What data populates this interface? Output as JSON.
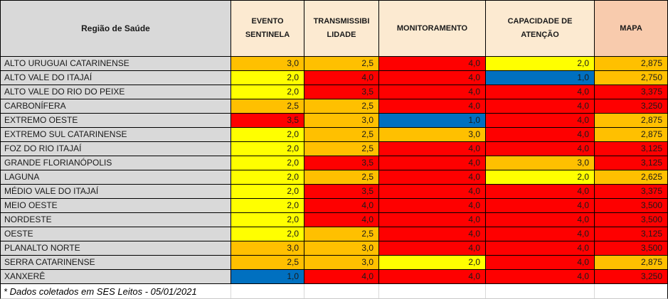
{
  "colors": {
    "yellow": "#FFFF00",
    "orange": "#FFC000",
    "red": "#FE0000",
    "blue": "#0070C0",
    "header_gray": "#D9D9D9",
    "header_cream": "#FCEAD1",
    "header_peach": "#F8CBAD",
    "grid_line": "#000000",
    "footer_gridline": "#D9D9D9"
  },
  "table": {
    "region_header": "Região de Saúde",
    "column_headers": [
      "EVENTO SENTINELA",
      "TRANSMISSIBILIDADE",
      "MONITORAMENTO",
      "CAPACIDADE DE ATENÇÃO",
      "MAPA"
    ],
    "rows": [
      {
        "region": "ALTO URUGUAI CATARINENSE",
        "cells": [
          {
            "v": "3,0",
            "c": "orange"
          },
          {
            "v": "2,5",
            "c": "orange"
          },
          {
            "v": "4,0",
            "c": "red"
          },
          {
            "v": "2,0",
            "c": "yellow"
          },
          {
            "v": "2,875",
            "c": "orange"
          }
        ]
      },
      {
        "region": "ALTO VALE DO ITAJAÍ",
        "cells": [
          {
            "v": "2,0",
            "c": "yellow"
          },
          {
            "v": "4,0",
            "c": "red"
          },
          {
            "v": "4,0",
            "c": "red"
          },
          {
            "v": "1,0",
            "c": "blue"
          },
          {
            "v": "2,750",
            "c": "orange"
          }
        ]
      },
      {
        "region": "ALTO VALE DO RIO DO PEIXE",
        "cells": [
          {
            "v": "2,0",
            "c": "yellow"
          },
          {
            "v": "3,5",
            "c": "red"
          },
          {
            "v": "4,0",
            "c": "red"
          },
          {
            "v": "4,0",
            "c": "red"
          },
          {
            "v": "3,375",
            "c": "red"
          }
        ]
      },
      {
        "region": "CARBONÍFERA",
        "cells": [
          {
            "v": "2,5",
            "c": "orange"
          },
          {
            "v": "2,5",
            "c": "orange"
          },
          {
            "v": "4,0",
            "c": "red"
          },
          {
            "v": "4,0",
            "c": "red"
          },
          {
            "v": "3,250",
            "c": "red"
          }
        ]
      },
      {
        "region": "EXTREMO OESTE",
        "cells": [
          {
            "v": "3,5",
            "c": "red"
          },
          {
            "v": "3,0",
            "c": "orange"
          },
          {
            "v": "1,0",
            "c": "blue"
          },
          {
            "v": "4,0",
            "c": "red"
          },
          {
            "v": "2,875",
            "c": "orange"
          }
        ]
      },
      {
        "region": "EXTREMO SUL CATARINENSE",
        "cells": [
          {
            "v": "2,0",
            "c": "yellow"
          },
          {
            "v": "2,5",
            "c": "orange"
          },
          {
            "v": "3,0",
            "c": "orange"
          },
          {
            "v": "4,0",
            "c": "red"
          },
          {
            "v": "2,875",
            "c": "orange"
          }
        ]
      },
      {
        "region": "FOZ DO RIO ITAJAÍ",
        "cells": [
          {
            "v": "2,0",
            "c": "yellow"
          },
          {
            "v": "2,5",
            "c": "orange"
          },
          {
            "v": "4,0",
            "c": "red"
          },
          {
            "v": "4,0",
            "c": "red"
          },
          {
            "v": "3,125",
            "c": "red"
          }
        ]
      },
      {
        "region": "GRANDE FLORIANÓPOLIS",
        "cells": [
          {
            "v": "2,0",
            "c": "yellow"
          },
          {
            "v": "3,5",
            "c": "red"
          },
          {
            "v": "4,0",
            "c": "red"
          },
          {
            "v": "3,0",
            "c": "orange"
          },
          {
            "v": "3,125",
            "c": "red"
          }
        ]
      },
      {
        "region": "LAGUNA",
        "cells": [
          {
            "v": "2,0",
            "c": "yellow"
          },
          {
            "v": "2,5",
            "c": "orange"
          },
          {
            "v": "4,0",
            "c": "red"
          },
          {
            "v": "2,0",
            "c": "yellow"
          },
          {
            "v": "2,625",
            "c": "orange"
          }
        ]
      },
      {
        "region": "MÉDIO VALE DO ITAJAÍ",
        "cells": [
          {
            "v": "2,0",
            "c": "yellow"
          },
          {
            "v": "3,5",
            "c": "red"
          },
          {
            "v": "4,0",
            "c": "red"
          },
          {
            "v": "4,0",
            "c": "red"
          },
          {
            "v": "3,375",
            "c": "red"
          }
        ]
      },
      {
        "region": "MEIO OESTE",
        "cells": [
          {
            "v": "2,0",
            "c": "yellow"
          },
          {
            "v": "4,0",
            "c": "red"
          },
          {
            "v": "4,0",
            "c": "red"
          },
          {
            "v": "4,0",
            "c": "red"
          },
          {
            "v": "3,500",
            "c": "red"
          }
        ]
      },
      {
        "region": "NORDESTE",
        "cells": [
          {
            "v": "2,0",
            "c": "yellow"
          },
          {
            "v": "4,0",
            "c": "red"
          },
          {
            "v": "4,0",
            "c": "red"
          },
          {
            "v": "4,0",
            "c": "red"
          },
          {
            "v": "3,500",
            "c": "red"
          }
        ]
      },
      {
        "region": "OESTE",
        "cells": [
          {
            "v": "2,0",
            "c": "yellow"
          },
          {
            "v": "2,5",
            "c": "orange"
          },
          {
            "v": "4,0",
            "c": "red"
          },
          {
            "v": "4,0",
            "c": "red"
          },
          {
            "v": "3,125",
            "c": "red"
          }
        ]
      },
      {
        "region": "PLANALTO NORTE",
        "cells": [
          {
            "v": "3,0",
            "c": "orange"
          },
          {
            "v": "3,0",
            "c": "orange"
          },
          {
            "v": "4,0",
            "c": "red"
          },
          {
            "v": "4,0",
            "c": "red"
          },
          {
            "v": "3,500",
            "c": "red"
          }
        ]
      },
      {
        "region": "SERRA CATARINENSE",
        "cells": [
          {
            "v": "2,5",
            "c": "orange"
          },
          {
            "v": "3,0",
            "c": "orange"
          },
          {
            "v": "2,0",
            "c": "yellow"
          },
          {
            "v": "4,0",
            "c": "red"
          },
          {
            "v": "2,875",
            "c": "orange"
          }
        ]
      },
      {
        "region": "XANXERÊ",
        "cells": [
          {
            "v": "1,0",
            "c": "blue"
          },
          {
            "v": "4,0",
            "c": "red"
          },
          {
            "v": "4,0",
            "c": "red"
          },
          {
            "v": "4,0",
            "c": "red"
          },
          {
            "v": "3,250",
            "c": "red"
          }
        ]
      }
    ]
  },
  "footer": {
    "note": "* Dados coletados em SES Leitos - 05/01/2021"
  },
  "chart_data": {
    "type": "table",
    "columns": [
      "Região de Saúde",
      "EVENTO SENTINELA",
      "TRANSMISSIBILIDADE",
      "MONITORAMENTO",
      "CAPACIDADE DE ATENÇÃO",
      "MAPA"
    ],
    "rows": [
      {
        "region": "ALTO URUGUAI CATARINENSE",
        "values": [
          3.0,
          2.5,
          4.0,
          2.0,
          2.875
        ],
        "colors": [
          "orange",
          "orange",
          "red",
          "yellow",
          "orange"
        ]
      },
      {
        "region": "ALTO VALE DO ITAJAÍ",
        "values": [
          2.0,
          4.0,
          4.0,
          1.0,
          2.75
        ],
        "colors": [
          "yellow",
          "red",
          "red",
          "blue",
          "orange"
        ]
      },
      {
        "region": "ALTO VALE DO RIO DO PEIXE",
        "values": [
          2.0,
          3.5,
          4.0,
          4.0,
          3.375
        ],
        "colors": [
          "yellow",
          "red",
          "red",
          "red",
          "red"
        ]
      },
      {
        "region": "CARBONÍFERA",
        "values": [
          2.5,
          2.5,
          4.0,
          4.0,
          3.25
        ],
        "colors": [
          "orange",
          "orange",
          "red",
          "red",
          "red"
        ]
      },
      {
        "region": "EXTREMO OESTE",
        "values": [
          3.5,
          3.0,
          1.0,
          4.0,
          2.875
        ],
        "colors": [
          "red",
          "orange",
          "blue",
          "red",
          "orange"
        ]
      },
      {
        "region": "EXTREMO SUL CATARINENSE",
        "values": [
          2.0,
          2.5,
          3.0,
          4.0,
          2.875
        ],
        "colors": [
          "yellow",
          "orange",
          "orange",
          "red",
          "orange"
        ]
      },
      {
        "region": "FOZ DO RIO ITAJAÍ",
        "values": [
          2.0,
          2.5,
          4.0,
          4.0,
          3.125
        ],
        "colors": [
          "yellow",
          "orange",
          "red",
          "red",
          "red"
        ]
      },
      {
        "region": "GRANDE FLORIANÓPOLIS",
        "values": [
          2.0,
          3.5,
          4.0,
          3.0,
          3.125
        ],
        "colors": [
          "yellow",
          "red",
          "red",
          "orange",
          "red"
        ]
      },
      {
        "region": "LAGUNA",
        "values": [
          2.0,
          2.5,
          4.0,
          2.0,
          2.625
        ],
        "colors": [
          "yellow",
          "orange",
          "red",
          "yellow",
          "orange"
        ]
      },
      {
        "region": "MÉDIO VALE DO ITAJAÍ",
        "values": [
          2.0,
          3.5,
          4.0,
          4.0,
          3.375
        ],
        "colors": [
          "yellow",
          "red",
          "red",
          "red",
          "red"
        ]
      },
      {
        "region": "MEIO OESTE",
        "values": [
          2.0,
          4.0,
          4.0,
          4.0,
          3.5
        ],
        "colors": [
          "yellow",
          "red",
          "red",
          "red",
          "red"
        ]
      },
      {
        "region": "NORDESTE",
        "values": [
          2.0,
          4.0,
          4.0,
          4.0,
          3.5
        ],
        "colors": [
          "yellow",
          "red",
          "red",
          "red",
          "red"
        ]
      },
      {
        "region": "OESTE",
        "values": [
          2.0,
          2.5,
          4.0,
          4.0,
          3.125
        ],
        "colors": [
          "yellow",
          "orange",
          "red",
          "red",
          "red"
        ]
      },
      {
        "region": "PLANALTO NORTE",
        "values": [
          3.0,
          3.0,
          4.0,
          4.0,
          3.5
        ],
        "colors": [
          "orange",
          "orange",
          "red",
          "red",
          "red"
        ]
      },
      {
        "region": "SERRA CATARINENSE",
        "values": [
          2.5,
          3.0,
          2.0,
          4.0,
          2.875
        ],
        "colors": [
          "orange",
          "orange",
          "yellow",
          "red",
          "orange"
        ]
      },
      {
        "region": "XANXERÊ",
        "values": [
          1.0,
          4.0,
          4.0,
          4.0,
          3.25
        ],
        "colors": [
          "blue",
          "red",
          "red",
          "red",
          "red"
        ]
      }
    ],
    "footnote": "* Dados coletados em SES Leitos - 05/01/2021"
  }
}
